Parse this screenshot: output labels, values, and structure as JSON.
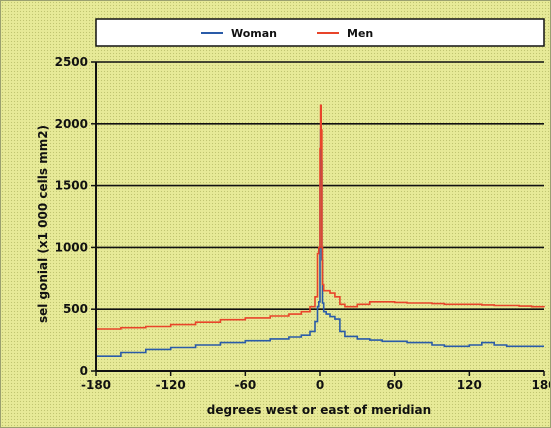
{
  "chart_data": {
    "type": "line",
    "title": "",
    "xlabel": "degrees west or east of meridian",
    "ylabel": "sel gonial (x1 000 cells mm2)",
    "xlim": [
      -180,
      180
    ],
    "ylim": [
      0,
      2500
    ],
    "xticks": [
      -180,
      -120,
      -60,
      0,
      60,
      120,
      180
    ],
    "yticks": [
      0,
      500,
      1000,
      1500,
      2000,
      2500
    ],
    "xtick_labels": [
      "-180",
      "-120",
      "-60",
      "0",
      "60",
      "120",
      "180"
    ],
    "ytick_labels": [
      "0",
      "500",
      "1000",
      "1500",
      "2000",
      "2500"
    ],
    "grid": "horizontal",
    "legend_position": "top",
    "series": [
      {
        "name": "Woman",
        "color": "#2a5ba8",
        "x": [
          -180,
          -160,
          -140,
          -120,
          -100,
          -80,
          -60,
          -40,
          -25,
          -15,
          -8,
          -4,
          -2,
          -1,
          0,
          0.5,
          1,
          1.5,
          2,
          3,
          5,
          8,
          12,
          16,
          20,
          30,
          40,
          50,
          60,
          70,
          80,
          90,
          100,
          110,
          120,
          130,
          140,
          150,
          160,
          170,
          180
        ],
        "y": [
          120,
          150,
          175,
          190,
          210,
          230,
          245,
          260,
          275,
          290,
          320,
          400,
          520,
          560,
          1500,
          1950,
          1700,
          900,
          550,
          480,
          460,
          440,
          420,
          320,
          280,
          260,
          250,
          240,
          240,
          230,
          230,
          210,
          200,
          200,
          210,
          230,
          210,
          200,
          200,
          200,
          200
        ]
      },
      {
        "name": "Men",
        "color": "#e8442a",
        "x": [
          -180,
          -160,
          -140,
          -120,
          -100,
          -80,
          -60,
          -40,
          -25,
          -15,
          -8,
          -4,
          -2,
          -1,
          0,
          0.5,
          1,
          1.5,
          2,
          3,
          5,
          8,
          12,
          16,
          20,
          30,
          40,
          50,
          60,
          70,
          80,
          90,
          100,
          110,
          120,
          130,
          140,
          150,
          160,
          170,
          180
        ],
        "y": [
          340,
          350,
          360,
          375,
          395,
          415,
          430,
          445,
          460,
          480,
          520,
          600,
          950,
          1000,
          1800,
          2150,
          1950,
          1000,
          700,
          650,
          650,
          630,
          600,
          540,
          520,
          540,
          560,
          560,
          555,
          550,
          550,
          545,
          540,
          540,
          540,
          535,
          530,
          530,
          525,
          520,
          515
        ]
      }
    ]
  }
}
